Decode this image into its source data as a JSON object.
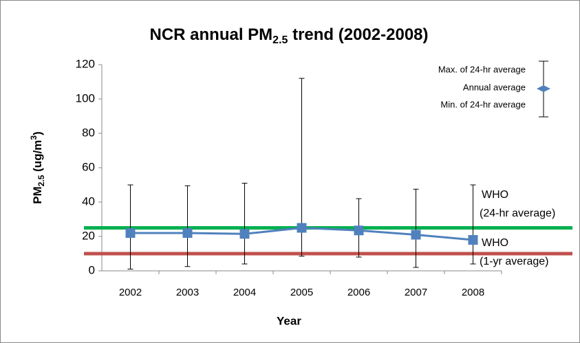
{
  "chart_data": {
    "type": "line",
    "title": {
      "before": "NCR annual  PM",
      "sub": "2.5",
      "after": " trend (2002-2008)"
    },
    "x_label": "Year",
    "y_label": {
      "before": "PM",
      "sub": "2.5",
      "mid": " (ug/m",
      "sup": "3",
      "after": ")"
    },
    "categories": [
      "2002",
      "2003",
      "2004",
      "2005",
      "2006",
      "2007",
      "2008"
    ],
    "series": [
      {
        "name": "Annual average",
        "color": "#4f81bd",
        "values": [
          22,
          22,
          21.5,
          25,
          23.5,
          21,
          18
        ],
        "max": [
          50,
          49.5,
          51,
          112,
          42,
          47.5,
          50
        ],
        "min": [
          1,
          2.5,
          4,
          8.5,
          8,
          2,
          4
        ]
      }
    ],
    "legend": {
      "max_label": "Max. of 24-hr average",
      "min_label": "Min. of 24-hr average"
    },
    "ylim": [
      0,
      120
    ],
    "yticks": [
      0,
      20,
      40,
      60,
      80,
      100,
      120
    ],
    "reference_lines": [
      {
        "value": 25,
        "color": "#00b050",
        "label": "WHO",
        "sublabel": "(24-hr average)"
      },
      {
        "value": 10,
        "color": "#c0504d",
        "label": "WHO",
        "sublabel": "(1-yr average)"
      }
    ]
  }
}
